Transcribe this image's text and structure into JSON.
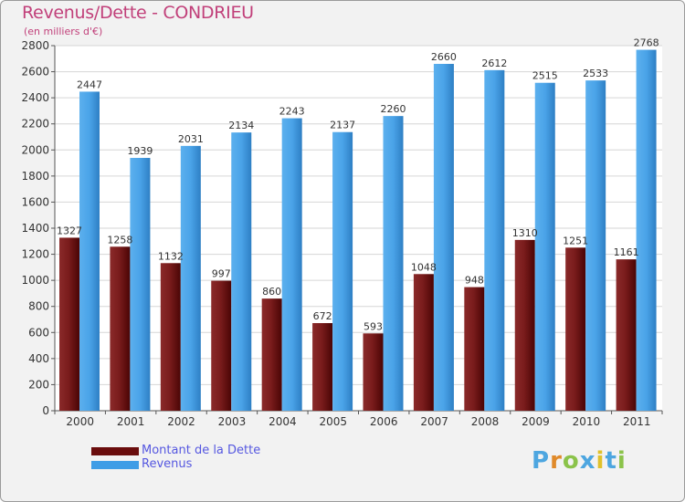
{
  "header": {
    "title": "Revenus/Dette - CONDRIEU",
    "subtitle": "(en milliers d'€)"
  },
  "colors": {
    "dette": "#7a1a1a",
    "revenus": "#4aa3e8",
    "text": "#c1407a",
    "legend_text": "#5557e0"
  },
  "legend": {
    "items": [
      {
        "label": "Montant de la Dette",
        "color": "#6a0d0d"
      },
      {
        "label": "Revenus",
        "color": "#3f9de6"
      }
    ]
  },
  "logo": {
    "letters": [
      "P",
      "r",
      "o",
      "x",
      "i",
      "t",
      "i"
    ],
    "colors": [
      "#4da6e0",
      "#e08a2a",
      "#8bc34a",
      "#4da6e0",
      "#e0c12a",
      "#4da6e0",
      "#8bc34a"
    ],
    "alt": "Proxiti"
  },
  "chart_data": {
    "type": "bar",
    "title": "Revenus/Dette - CONDRIEU",
    "subtitle": "(en milliers d'€)",
    "categories": [
      "2000",
      "2001",
      "2002",
      "2003",
      "2004",
      "2005",
      "2006",
      "2007",
      "2008",
      "2009",
      "2010",
      "2011"
    ],
    "series": [
      {
        "name": "Montant de la Dette",
        "values": [
          1327,
          1258,
          1132,
          997,
          860,
          672,
          593,
          1048,
          948,
          1310,
          1251,
          1161
        ]
      },
      {
        "name": "Revenus",
        "values": [
          2447,
          1939,
          2031,
          2134,
          2243,
          2137,
          2260,
          2660,
          2612,
          2515,
          2533,
          2768
        ]
      }
    ],
    "data_labels": [
      [
        "1327",
        "1258",
        "1132",
        "997",
        "860",
        "672",
        "593",
        "1048",
        "948",
        "1310",
        "1251",
        "1161"
      ],
      [
        "2447",
        "1939",
        "2031",
        "2134",
        "2243",
        "2137",
        "2260",
        "2660",
        "2612",
        "2515",
        "2533",
        "2768"
      ]
    ],
    "ylim": [
      0,
      2800
    ],
    "yticks": [
      0,
      200,
      400,
      600,
      800,
      1000,
      1200,
      1400,
      1600,
      1800,
      2000,
      2200,
      2400,
      2600,
      2800
    ],
    "grid": true,
    "legend": "bottom-left"
  }
}
